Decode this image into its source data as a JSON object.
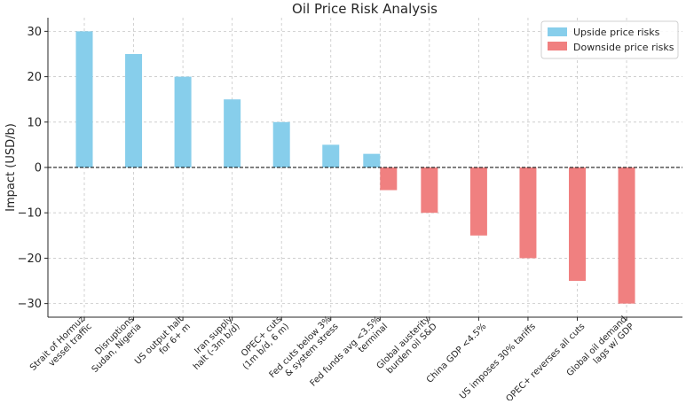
{
  "chart_data": {
    "type": "bar",
    "title": "Oil Price Risk Analysis",
    "xlabel": "",
    "ylabel": "Impact (USD/b)",
    "ylim": [
      -33,
      33
    ],
    "yticks": [
      -30,
      -20,
      -10,
      0,
      10,
      20,
      30
    ],
    "grid": true,
    "legend_position": "top-right",
    "categories": [
      "Strait of Hormuz\nvessel traffic",
      "Disruptions\nSudan, Nigeria",
      "US output halt\nfor 6+ m",
      "Iran supply\nhalt (-3m b/d)",
      "OPEC+ cuts\n(1m b/d, 6 m)",
      "Fed cuts below 3%\n& system stress",
      "Fed funds avg <3.5%\nterminal",
      "Global austerity\nburden oil S&D",
      "China GDP <4.5%",
      "US imposes 30% tariffs",
      "OPEC+ reverses all cuts",
      "Global oil demand\nlags w/ GDP"
    ],
    "series": [
      {
        "name": "Upside price risks",
        "color": "#87ceeb",
        "values": [
          30,
          25,
          20,
          15,
          10,
          5,
          3,
          null,
          null,
          null,
          null,
          null
        ]
      },
      {
        "name": "Downside price risks",
        "color": "#f08080",
        "values": [
          null,
          null,
          null,
          null,
          null,
          null,
          -5,
          -10,
          -15,
          -20,
          -25,
          -30
        ]
      }
    ]
  }
}
